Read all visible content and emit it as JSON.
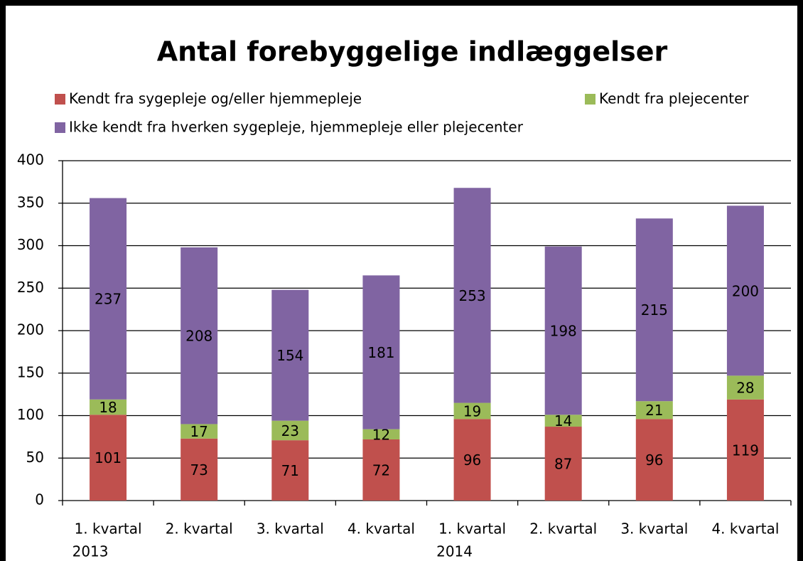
{
  "chart_data": {
    "type": "stacked-bar",
    "title": "Antal forebyggelige indlæggelser",
    "categories": [
      "1. kvartal",
      "2. kvartal",
      "3. kvartal",
      "4. kvartal",
      "1. kvartal",
      "2. kvartal",
      "3. kvartal",
      "4. kvartal"
    ],
    "groups": [
      {
        "name": "2013",
        "count": 4
      },
      {
        "name": "2014",
        "count": 4
      }
    ],
    "series": [
      {
        "name": "Kendt fra sygepleje og/eller hjemmepleje",
        "color": "#c0504d",
        "values": [
          101,
          73,
          71,
          72,
          96,
          87,
          96,
          119
        ]
      },
      {
        "name": "Kendt fra plejecenter",
        "color": "#9bbb59",
        "values": [
          18,
          17,
          23,
          12,
          19,
          14,
          21,
          28
        ]
      },
      {
        "name": "Ikke kendt fra hverken sygepleje, hjemmepleje eller plejecenter",
        "color": "#8064a2",
        "values": [
          237,
          208,
          154,
          181,
          253,
          198,
          215,
          200
        ]
      }
    ],
    "ylim": [
      0,
      400
    ],
    "yticks": [
      0,
      50,
      100,
      150,
      200,
      250,
      300,
      350,
      400
    ],
    "grid": true
  }
}
